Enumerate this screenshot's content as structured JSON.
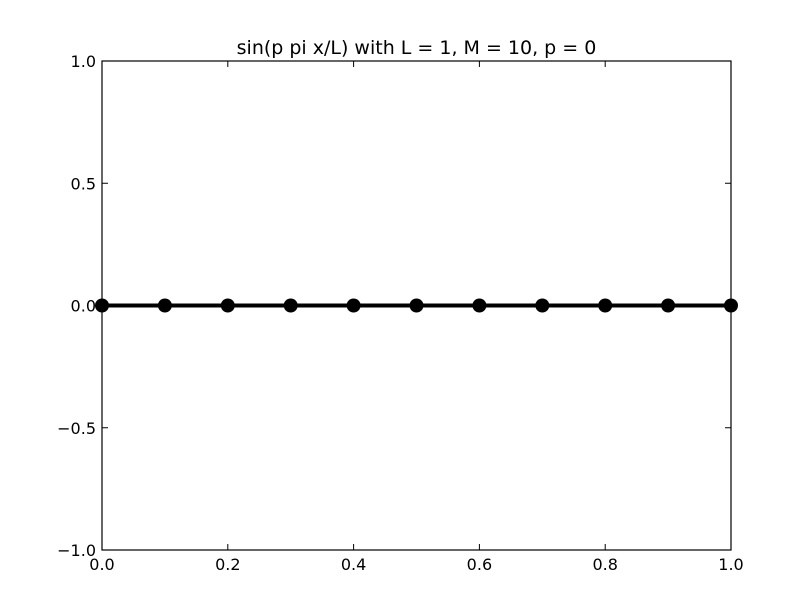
{
  "chart_data": {
    "type": "line",
    "title": "sin(p pi x/L) with L = 1, M = 10, p = 0",
    "xlabel": "",
    "ylabel": "",
    "xlim": [
      0.0,
      1.0
    ],
    "ylim": [
      -1.0,
      1.0
    ],
    "grid": false,
    "legend": "none",
    "x_ticks": [
      {
        "value": 0.0,
        "label": "0.0"
      },
      {
        "value": 0.2,
        "label": "0.2"
      },
      {
        "value": 0.4,
        "label": "0.4"
      },
      {
        "value": 0.6,
        "label": "0.6"
      },
      {
        "value": 0.8,
        "label": "0.8"
      },
      {
        "value": 1.0,
        "label": "1.0"
      }
    ],
    "y_ticks": [
      {
        "value": 1.0,
        "label": "1.0"
      },
      {
        "value": 0.5,
        "label": "0.5"
      },
      {
        "value": 0.0,
        "label": "0.0"
      },
      {
        "value": -0.5,
        "label": "−0.5"
      },
      {
        "value": -1.0,
        "label": "−1.0"
      }
    ],
    "series": [
      {
        "color": "#000000",
        "marker": "circle",
        "x": [
          0.0,
          0.1,
          0.2,
          0.3,
          0.4,
          0.5,
          0.6,
          0.7,
          0.8,
          0.9,
          1.0
        ],
        "y": [
          0,
          0,
          0,
          0,
          0,
          0,
          0,
          0,
          0,
          0,
          0
        ]
      }
    ]
  }
}
